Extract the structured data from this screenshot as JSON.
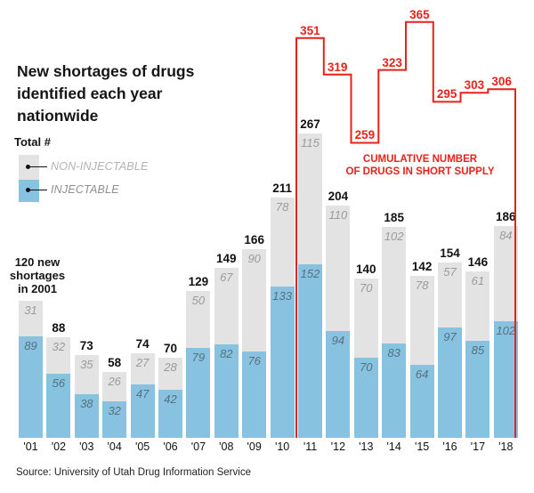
{
  "title": "New shortages of drugs\nidentified each year\nnationwide",
  "legend": {
    "total_label": "Total #",
    "non_injectable_label": "NON-INJECTABLE",
    "injectable_label": "INJECTABLE"
  },
  "annotations": {
    "first_year_note": "120 new\nshortages\nin 2001",
    "cumulative_note": "CUMULATIVE NUMBER\nOF DRUGS IN SHORT SUPPLY"
  },
  "source": "Source: University of Utah Drug Information Service",
  "colors": {
    "injectable": "#87c3e0",
    "non_injectable": "#e3e3e3",
    "cumulative_line": "#e8221a",
    "total_text": "#111111",
    "gray_value_text": "#9b9b9b",
    "blue_value_text": "#56707f"
  },
  "chart_data": {
    "type": "bar",
    "stacked": true,
    "title": "New shortages of drugs identified each year nationwide",
    "categories": [
      "'01",
      "'02",
      "'03",
      "'04",
      "'05",
      "'06",
      "'07",
      "'08",
      "'09",
      "'10",
      "'11",
      "'12",
      "'13",
      "'14",
      "'15",
      "'16",
      "'17",
      "'18"
    ],
    "series": [
      {
        "name": "INJECTABLE",
        "color": "#87c3e0",
        "values": [
          89,
          56,
          38,
          32,
          47,
          42,
          79,
          82,
          76,
          133,
          152,
          94,
          70,
          83,
          64,
          97,
          85,
          102
        ]
      },
      {
        "name": "NON-INJECTABLE",
        "color": "#e3e3e3",
        "values": [
          31,
          32,
          35,
          26,
          27,
          28,
          50,
          67,
          90,
          78,
          115,
          110,
          70,
          102,
          78,
          57,
          61,
          84
        ]
      }
    ],
    "totals": [
      120,
      88,
      73,
      58,
      74,
      70,
      129,
      149,
      166,
      211,
      267,
      204,
      140,
      185,
      142,
      154,
      146,
      186
    ],
    "cumulative_line": {
      "name": "CUMULATIVE NUMBER OF DRUGS IN SHORT SUPPLY",
      "color": "#e8221a",
      "start_category": "'11",
      "values": [
        351,
        319,
        259,
        323,
        365,
        295,
        303,
        306
      ]
    },
    "xlabel": "",
    "ylabel": "",
    "ylim": [
      0,
      380
    ],
    "grid": false,
    "legend_position": "upper-left"
  }
}
